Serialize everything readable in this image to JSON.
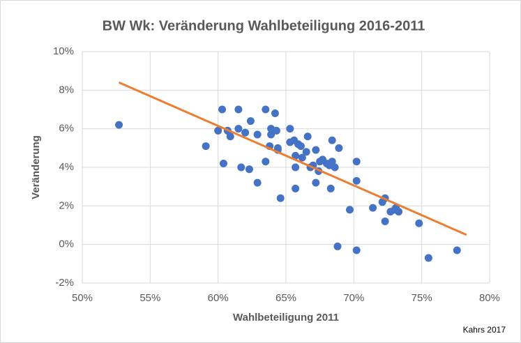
{
  "chart_data": {
    "type": "scatter",
    "title": "BW Wk: Veränderung Wahlbeteiligung 2016-2011",
    "x_label": "Wahlbeteiligung 2011",
    "y_label": "Veränderung",
    "source": "Kahrs 2017",
    "color": "#4472c4",
    "x": [
      52.7,
      59.1,
      60.0,
      60.3,
      60.4,
      60.7,
      60.9,
      61.5,
      61.5,
      61.7,
      62.0,
      62.3,
      62.4,
      62.9,
      62.9,
      63.5,
      63.5,
      63.8,
      63.9,
      63.9,
      64.2,
      64.3,
      64.4,
      64.4,
      64.6,
      65.3,
      65.3,
      65.6,
      65.7,
      65.7,
      65.7,
      65.9,
      66.1,
      66.2,
      66.5,
      66.6,
      66.8,
      67.0,
      67.2,
      67.2,
      67.4,
      67.5,
      67.7,
      68.0,
      68.2,
      68.3,
      68.4,
      68.4,
      68.6,
      68.8,
      68.9,
      69.7,
      70.2,
      70.2,
      70.2,
      71.4,
      72.1,
      72.3,
      72.3,
      72.7,
      73.0,
      73.1,
      73.3,
      74.8,
      75.5,
      77.6
    ],
    "y": [
      6.2,
      5.1,
      5.9,
      7.0,
      4.2,
      5.9,
      5.6,
      7.0,
      6.0,
      4.0,
      5.8,
      3.9,
      6.4,
      5.7,
      3.2,
      7.0,
      4.3,
      5.1,
      6.0,
      5.7,
      6.8,
      5.9,
      5.0,
      4.9,
      2.4,
      6.0,
      5.3,
      5.4,
      4.6,
      4.0,
      2.9,
      5.2,
      5.1,
      4.5,
      4.8,
      5.6,
      4.0,
      4.1,
      4.9,
      3.2,
      3.8,
      4.3,
      4.4,
      4.2,
      4.1,
      2.9,
      4.3,
      5.4,
      4.0,
      -0.1,
      5.0,
      1.8,
      4.3,
      3.3,
      -0.3,
      1.9,
      2.2,
      2.4,
      1.2,
      1.7,
      1.8,
      1.9,
      1.7,
      1.1,
      -0.7,
      -0.3
    ],
    "trendline": {
      "color": "#ed7d31",
      "x": [
        52.7,
        78.3
      ],
      "y": [
        8.4,
        0.5
      ]
    },
    "xlim": [
      50,
      80
    ],
    "ylim": [
      -2,
      10
    ],
    "xticks": [
      {
        "value": 50,
        "label": "50%"
      },
      {
        "value": 55,
        "label": "55%"
      },
      {
        "value": 60,
        "label": "60%"
      },
      {
        "value": 65,
        "label": "65%"
      },
      {
        "value": 70,
        "label": "70%"
      },
      {
        "value": 75,
        "label": "75%"
      },
      {
        "value": 80,
        "label": "80%"
      }
    ],
    "yticks": [
      {
        "value": -2,
        "label": "-2%"
      },
      {
        "value": 0,
        "label": "0%"
      },
      {
        "value": 2,
        "label": "2%"
      },
      {
        "value": 4,
        "label": "4%"
      },
      {
        "value": 6,
        "label": "6%"
      },
      {
        "value": 8,
        "label": "8%"
      },
      {
        "value": 10,
        "label": "10%"
      }
    ],
    "grid": true
  }
}
